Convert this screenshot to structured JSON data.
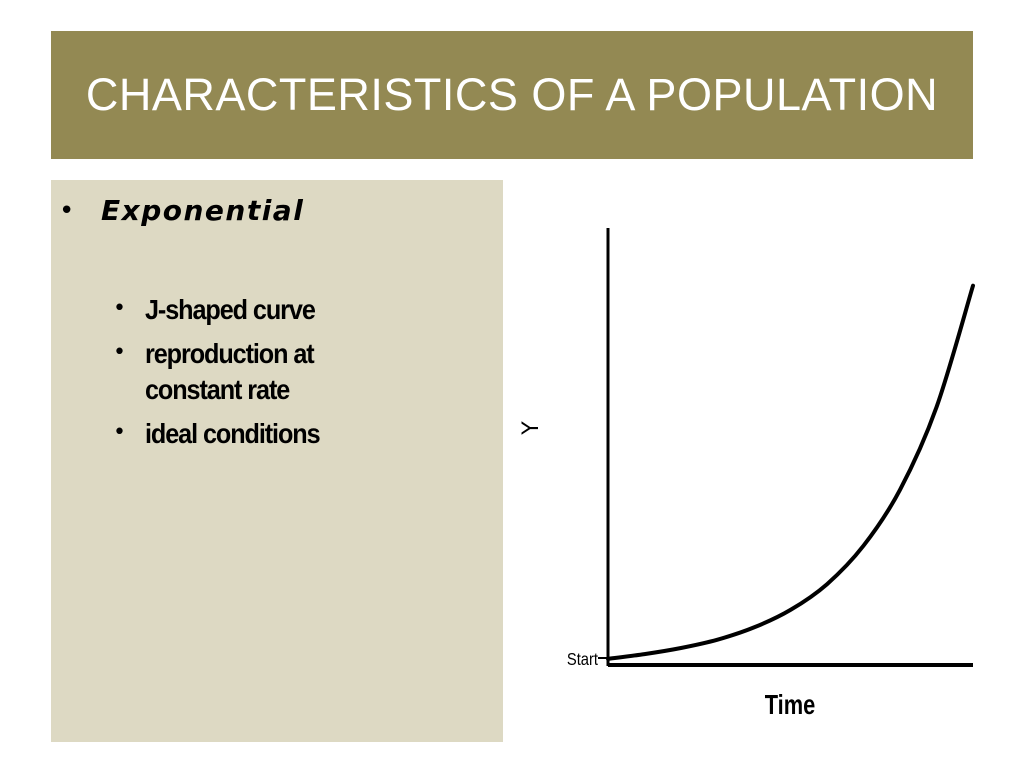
{
  "slide": {
    "title": "CHARACTERISTICS OF A POPULATION",
    "colors": {
      "title_bar": "#938953",
      "content_box": "#ddd9c3"
    },
    "bullets": {
      "main": "Exponential",
      "sub": [
        "J-shaped curve",
        "reproduction at constant rate",
        "ideal conditions"
      ]
    }
  },
  "chart_data": {
    "type": "line",
    "title": "",
    "xlabel": "Time",
    "ylabel": "Y",
    "y_tick_label": "Start",
    "grid": false,
    "legend": "none",
    "xlim": [
      0,
      10
    ],
    "ylim": [
      0,
      100
    ],
    "series": [
      {
        "x": [
          0,
          1,
          2,
          3,
          4,
          5,
          6,
          7,
          8,
          9,
          10
        ],
        "values": [
          1.4,
          2.5,
          3.9,
          5.8,
          8.6,
          12.6,
          18.5,
          27.3,
          40.1,
          59.0,
          86.8
        ]
      }
    ]
  }
}
